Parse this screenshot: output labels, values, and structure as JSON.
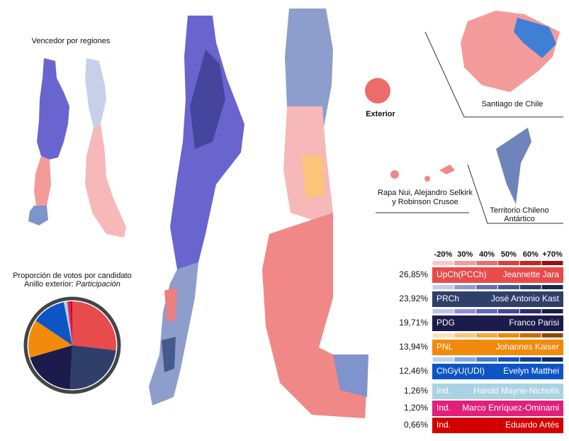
{
  "regions_title": "Vencedor por regiones",
  "exterior": "Exterior",
  "santiago": "Santiago de Chile",
  "islands": [
    "Rapa Nui, Alejandro Selkirk",
    "y Robinson Crusoe"
  ],
  "antarctic": [
    "Territorio Chileno",
    "Antártico"
  ],
  "pie": {
    "title": "Proporción de votos por candidato",
    "subtitle": "Anillo exterior:",
    "subtitle_italic": "Participación"
  },
  "scale_ticks": [
    "-20%",
    "30%",
    "40%",
    "50%",
    "60%",
    "+70%"
  ],
  "candidates": [
    {
      "value": 26.85,
      "label": "26,85%",
      "party": "UpCh(PCCh)",
      "name": "Jeannette Jara",
      "color": "#e84b4b",
      "scale": [
        "#f8c8c8",
        "#f39b9b",
        "#ec6c6c",
        "#de3d3d",
        "#c42424",
        "#9a1010"
      ]
    },
    {
      "value": 23.92,
      "label": "23,92%",
      "party": "PRCh",
      "name": "José Antonio Kast",
      "color": "#2f3f6a",
      "scale": [
        "#c4cde6",
        "#8d9dcc",
        "#6074a8",
        "#455a8c",
        "#2f3f6a",
        "#1c2847"
      ]
    },
    {
      "value": 19.71,
      "label": "19,71%",
      "party": "PDG",
      "name": "Franco Parisi",
      "color": "#1b1b4c",
      "scale": [
        "#c2c2ee",
        "#8d8de0",
        "#6464c4",
        "#45459e",
        "#2c2c78",
        "#1b1b4c"
      ]
    },
    {
      "value": 13.94,
      "label": "13,94%",
      "party": "PNL",
      "name": "Johannes Kaiser",
      "color": "#f28a0c",
      "scale": [
        "#fde3bd",
        "#fbc57a",
        "#f7a53c",
        "#f28a0c",
        "#c96c06",
        "#8e4a02"
      ]
    },
    {
      "value": 12.46,
      "label": "12,46%",
      "party": "ChGyU(UDI)",
      "name": "Evelyn Matthei",
      "color": "#0d55c4",
      "scale": [
        "#bcd3f2",
        "#7ea9e6",
        "#3f7fd6",
        "#0d55c4",
        "#0a3f94",
        "#062a66"
      ]
    },
    {
      "value": 1.26,
      "label": "1,26%",
      "party": "Ind.",
      "name": "Harold Mayne-Nicholls",
      "color": "#a9d3e4"
    },
    {
      "value": 1.2,
      "label": "1,20%",
      "party": "Ind.",
      "name": "Marco Enríquez-Ominami",
      "color": "#e0207b"
    },
    {
      "value": 0.66,
      "label": "0,66%",
      "party": "Ind.",
      "name": "Eduardo Artés",
      "color": "#d20000"
    }
  ]
}
